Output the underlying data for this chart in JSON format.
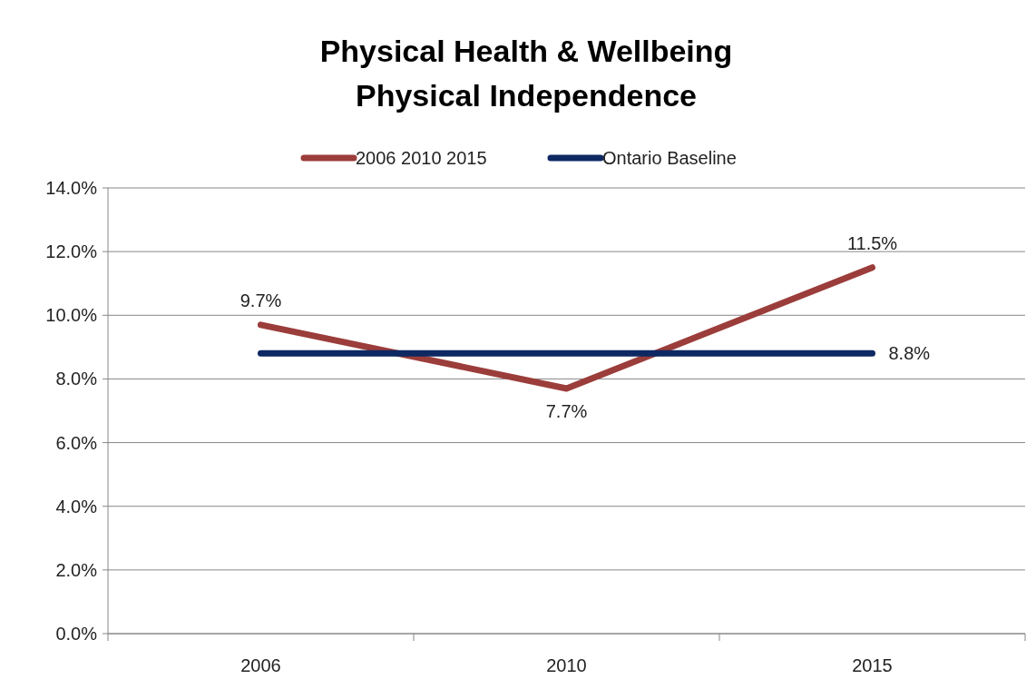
{
  "chart_data": {
    "type": "line",
    "title": "Physical Health & Wellbeing",
    "subtitle": "Physical Independence",
    "categories": [
      "2006",
      "2010",
      "2015"
    ],
    "series": [
      {
        "name": "2006 2010 2015",
        "color": "#9b3d3a",
        "values": [
          9.7,
          7.7,
          11.5
        ],
        "value_labels": [
          "9.7%",
          "7.7%",
          "11.5%"
        ]
      },
      {
        "name": "Ontario Baseline",
        "color": "#0d2862",
        "values": [
          8.8,
          8.8,
          8.8
        ],
        "value_labels": [
          null,
          null,
          "8.8%"
        ]
      }
    ],
    "ylim": [
      0,
      14
    ],
    "yticks": [
      {
        "value": 0,
        "label": "0.0%"
      },
      {
        "value": 2,
        "label": "2.0%"
      },
      {
        "value": 4,
        "label": "4.0%"
      },
      {
        "value": 6,
        "label": "6.0%"
      },
      {
        "value": 8,
        "label": "8.0%"
      },
      {
        "value": 10,
        "label": "10.0%"
      },
      {
        "value": 12,
        "label": "12.0%"
      },
      {
        "value": 14,
        "label": "14.0%"
      }
    ],
    "grid": "y",
    "legend": "top",
    "marker": "none",
    "line_style": "solid"
  }
}
